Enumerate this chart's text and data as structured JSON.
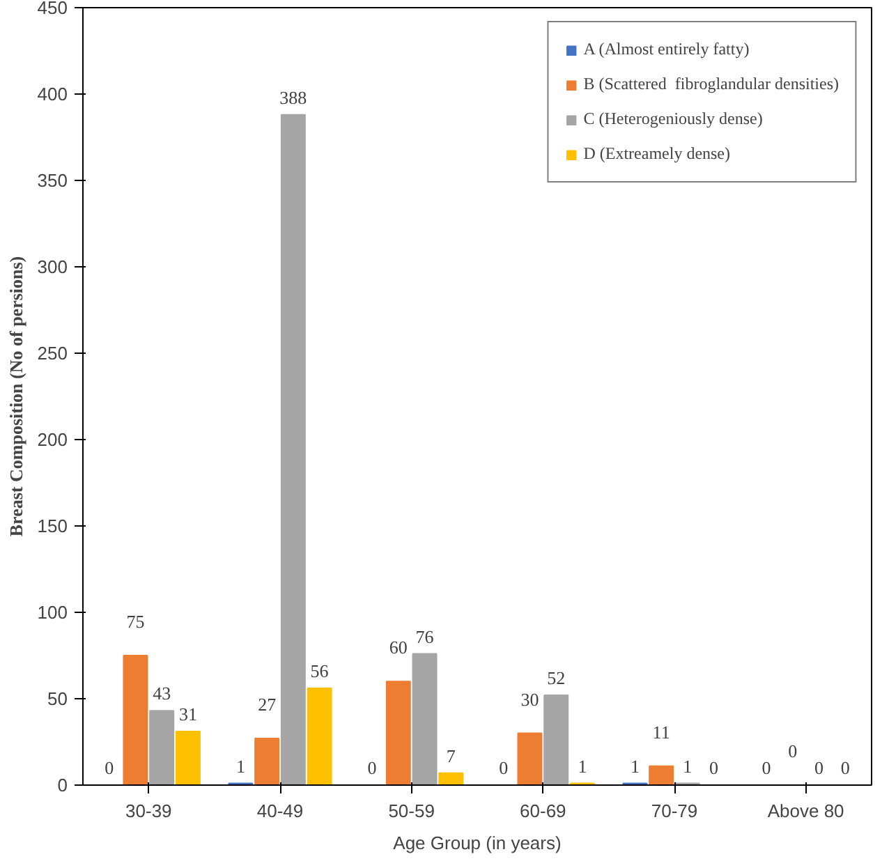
{
  "chart_data": {
    "type": "bar",
    "xlabel": "Age Group (in years)",
    "ylabel": "Breast Composition (No of persions)",
    "categories": [
      "30-39",
      "40-49",
      "50-59",
      "60-69",
      "70-79",
      "Above 80"
    ],
    "series": [
      {
        "name": "A (Almost entirely fatty)",
        "color": "#4472c4",
        "values": [
          0,
          1,
          0,
          0,
          1,
          0
        ]
      },
      {
        "name": "B (Scattered  fibroglandular densities)",
        "color": "#ed7d31",
        "values": [
          75,
          27,
          60,
          30,
          11,
          0
        ]
      },
      {
        "name": "C (Heterogeniously dense)",
        "color": "#a5a5a5",
        "values": [
          43,
          388,
          76,
          52,
          1,
          0
        ]
      },
      {
        "name": "D (Extreamely dense)",
        "color": "#ffc000",
        "values": [
          31,
          56,
          7,
          1,
          0,
          0
        ]
      }
    ],
    "ylim": [
      0,
      450
    ],
    "yticks": [
      0,
      50,
      100,
      150,
      200,
      250,
      300,
      350,
      400,
      450
    ],
    "grid": false,
    "legend": "top right",
    "data_labels": true
  }
}
